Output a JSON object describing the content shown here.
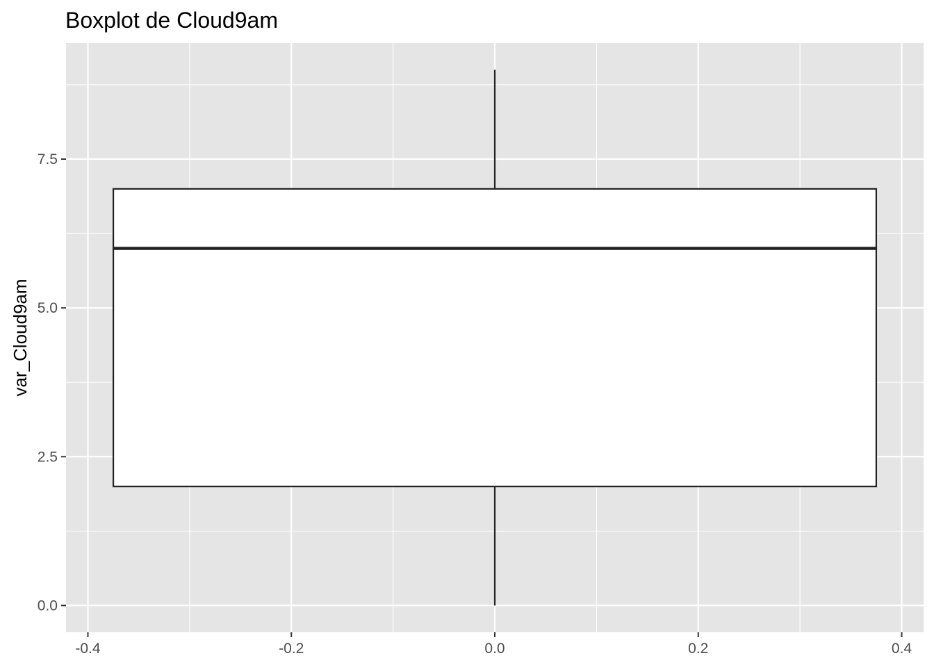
{
  "chart_data": {
    "type": "boxplot",
    "title": "Boxplot de Cloud9am",
    "xlabel": "",
    "ylabel": "var_Cloud9am",
    "xlim": [
      -0.4215,
      0.4215
    ],
    "ylim": [
      -0.45,
      9.45
    ],
    "x_ticks": [
      -0.4,
      -0.2,
      0.0,
      0.2,
      0.4
    ],
    "x_tick_labels": [
      "-0.4",
      "-0.2",
      "0.0",
      "0.2",
      "0.4"
    ],
    "y_ticks": [
      0.0,
      2.5,
      5.0,
      7.5
    ],
    "y_tick_labels": [
      "0.0",
      "2.5",
      "5.0",
      "7.5"
    ],
    "grid": true,
    "boxes": [
      {
        "x": 0.0,
        "box_left": -0.375,
        "box_right": 0.375,
        "min": 0,
        "q1": 2,
        "median": 6,
        "q3": 7,
        "max": 9
      }
    ],
    "colors": {
      "panel_background": "#e5e5e5",
      "grid_line": "#ffffff",
      "box_fill": "#ffffff",
      "box_stroke": "#222222",
      "tick_label": "#4d4d4d",
      "tick_mark": "#333333"
    }
  }
}
